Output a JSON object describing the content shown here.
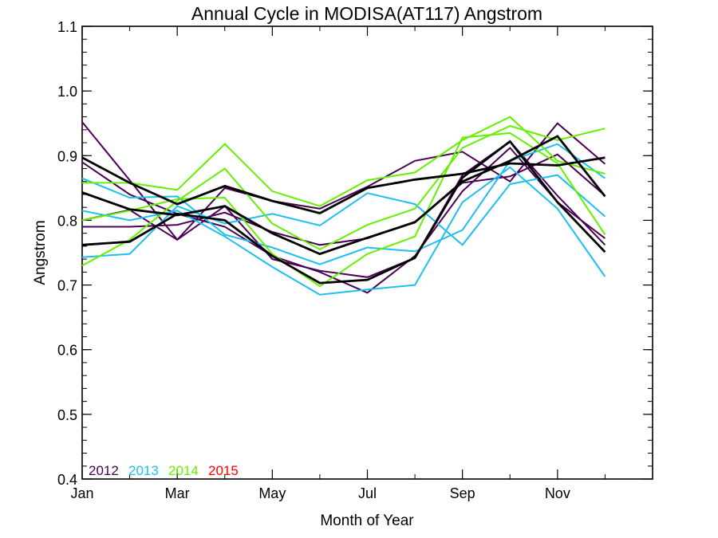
{
  "chart_data": {
    "type": "line",
    "title": "Annual Cycle in MODISA(AT117) Angstrom",
    "xlabel": "Month of Year",
    "ylabel": "Angstrom",
    "ylim": [
      0.4,
      1.1
    ],
    "xlim": [
      1,
      13
    ],
    "yticks": [
      0.4,
      0.5,
      0.6,
      0.7,
      0.8,
      0.9,
      1.0,
      1.1
    ],
    "ytick_labels": [
      "0.4",
      "0.5",
      "0.6",
      "0.7",
      "0.8",
      "0.9",
      "1.0",
      "1.1"
    ],
    "xticks": [
      1,
      3,
      5,
      7,
      9,
      11
    ],
    "xtick_labels": [
      "Jan",
      "Mar",
      "May",
      "Jul",
      "Sep",
      "Nov"
    ],
    "x_minor_ticks": [
      2,
      4,
      6,
      8,
      10,
      12
    ],
    "y_minor_step": 0.02,
    "grid": false,
    "x": [
      1,
      2,
      3,
      4,
      5,
      6,
      7,
      8,
      9,
      10,
      11,
      12
    ],
    "legend": [
      {
        "label": "2012",
        "color": "#4B0055"
      },
      {
        "label": "2013",
        "color": "#1EBEF0"
      },
      {
        "label": "2014",
        "color": "#64F000"
      },
      {
        "label": "2015",
        "color": "#FF0000"
      }
    ],
    "series": [
      {
        "color": "#4B0055",
        "values": [
          0.952,
          0.862,
          0.77,
          0.85,
          0.83,
          0.818,
          0.852,
          0.892,
          0.906,
          0.86,
          0.95,
          0.887
        ]
      },
      {
        "color": "#4B0055",
        "values": [
          0.89,
          0.84,
          0.81,
          0.79,
          0.745,
          0.72,
          0.688,
          0.745,
          0.845,
          0.912,
          0.828,
          0.772
        ]
      },
      {
        "color": "#4B0055",
        "values": [
          0.79,
          0.79,
          0.793,
          0.812,
          0.782,
          0.762,
          0.772,
          0.798,
          0.858,
          0.868,
          0.902,
          0.838
        ]
      },
      {
        "color": "#4B0055",
        "values": [
          0.8,
          0.816,
          0.77,
          0.822,
          0.74,
          0.722,
          0.712,
          0.742,
          0.87,
          0.922,
          0.838,
          0.762
        ]
      },
      {
        "color": "#1EBEF0",
        "values": [
          0.865,
          0.835,
          0.837,
          0.778,
          0.758,
          0.732,
          0.758,
          0.752,
          0.785,
          0.892,
          0.918,
          0.865
        ]
      },
      {
        "color": "#1EBEF0",
        "values": [
          0.743,
          0.748,
          0.822,
          0.795,
          0.81,
          0.792,
          0.842,
          0.825,
          0.762,
          0.856,
          0.87,
          0.806
        ]
      },
      {
        "color": "#1EBEF0",
        "values": [
          0.815,
          0.8,
          0.815,
          0.775,
          0.728,
          0.685,
          0.693,
          0.7,
          0.828,
          0.882,
          0.818,
          0.713
        ]
      },
      {
        "color": "#64F000",
        "values": [
          0.858,
          0.858,
          0.847,
          0.918,
          0.845,
          0.822,
          0.862,
          0.874,
          0.924,
          0.96,
          0.892,
          0.872
        ]
      },
      {
        "color": "#64F000",
        "values": [
          0.73,
          0.77,
          0.83,
          0.88,
          0.795,
          0.755,
          0.793,
          0.818,
          0.912,
          0.946,
          0.924,
          0.942
        ]
      },
      {
        "color": "#64F000",
        "values": [
          0.8,
          0.815,
          0.833,
          0.835,
          0.748,
          0.698,
          0.748,
          0.775,
          0.928,
          0.935,
          0.888,
          0.778
        ]
      },
      {
        "color": "#000000",
        "values": [
          0.897,
          0.858,
          0.825,
          0.853,
          0.83,
          0.811,
          0.85,
          0.863,
          0.872,
          0.888,
          0.885,
          0.897
        ]
      },
      {
        "color": "#000000",
        "values": [
          0.843,
          0.817,
          0.808,
          0.822,
          0.78,
          0.748,
          0.773,
          0.797,
          0.86,
          0.892,
          0.93,
          0.837
        ]
      },
      {
        "color": "#000000",
        "values": [
          0.762,
          0.767,
          0.81,
          0.8,
          0.745,
          0.703,
          0.708,
          0.742,
          0.866,
          0.922,
          0.828,
          0.751
        ]
      }
    ]
  }
}
